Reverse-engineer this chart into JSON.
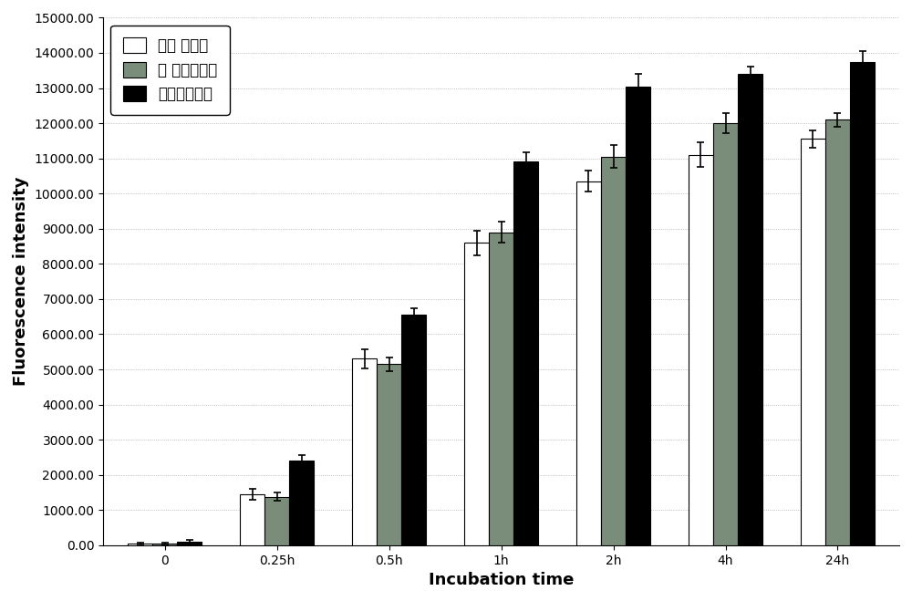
{
  "categories": [
    "0",
    "0.25h",
    "0.5h",
    "1h",
    "2h",
    "4h",
    "24h"
  ],
  "series": {
    "white": [
      50,
      1450,
      5300,
      8600,
      10350,
      11100,
      11550
    ],
    "gray": [
      50,
      1380,
      5150,
      8900,
      11050,
      12000,
      12100
    ],
    "black": [
      100,
      2400,
      6550,
      10900,
      13050,
      13400,
      13750
    ]
  },
  "errors": {
    "white": [
      30,
      150,
      280,
      350,
      300,
      350,
      250
    ],
    "gray": [
      30,
      120,
      200,
      300,
      320,
      280,
      200
    ],
    "black": [
      40,
      150,
      200,
      280,
      350,
      200,
      300
    ]
  },
  "colors": {
    "white": "#ffffff",
    "gray": "#7a8c7a",
    "black": "#000000"
  },
  "legend_labels": [
    "光滑 馒表面",
    "纳 米管馒表面",
    "复合涂层表面"
  ],
  "ylabel": "Fluorescence intensity",
  "xlabel": "Incubation time",
  "ylim": [
    0,
    15000
  ],
  "yticks": [
    0,
    1000,
    2000,
    3000,
    4000,
    5000,
    6000,
    7000,
    8000,
    9000,
    10000,
    11000,
    12000,
    13000,
    14000,
    15000
  ],
  "ytick_labels": [
    "0.00",
    "1000.00",
    "2000.00",
    "3000.00",
    "4000.00",
    "5000.00",
    "6000.00",
    "7000.00",
    "8000.00",
    "9000.00",
    "10000.00",
    "11000.00",
    "12000.00",
    "13000.00",
    "14000.00",
    "15000.00"
  ],
  "bar_width": 0.22,
  "edge_color": "#000000",
  "background_color": "#ffffff",
  "axis_fontsize": 13,
  "tick_fontsize": 10,
  "legend_fontsize": 12
}
